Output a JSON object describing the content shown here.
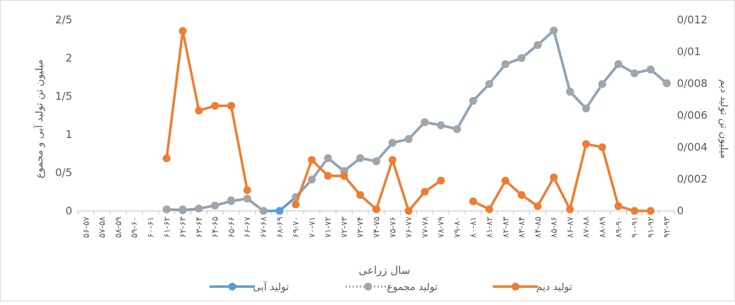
{
  "chart_data": {
    "type": "line",
    "title": "",
    "xlabel": "سال زراعی",
    "ylabel_left": "میلیون تن تولید آبی و مجموع",
    "ylabel_right": "میلیون تن تولید دیم",
    "ylim_left": [
      0,
      2.5
    ],
    "ylim_right": [
      0,
      0.012
    ],
    "yticks_left": [
      "0",
      "0/5",
      "1",
      "1/5",
      "2",
      "2/5"
    ],
    "yticks_right": [
      "0",
      "0/002",
      "0/004",
      "0/006",
      "0/008",
      "0/01",
      "0/012"
    ],
    "grid": false,
    "legend_position": "bottom",
    "categories": [
      "۵۶-۵۷",
      "۵۷-۵۸",
      "۵۸-۵۹",
      "۵۹-۶۰",
      "۶۰-۶۱",
      "۶۱-۶۲",
      "۶۲-۶۳",
      "۶۳-۶۴",
      "۶۴-۶۵",
      "۶۵-۶۶",
      "۶۶-۶۷",
      "۶۷-۶۸",
      "۶۸-۶۹",
      "۶۹-۷۰",
      "۷۰-۷۱",
      "۷۱-۷۲",
      "۷۲-۷۳",
      "۷۳-۷۴",
      "۷۴-۷۵",
      "۷۵-۷۶",
      "۷۶-۷۷",
      "۷۷-۷۸",
      "۷۸-۷۹",
      "۷۹-۸۰",
      "۸۰-۸۱",
      "۸۱-۸۲",
      "۸۲-۸۳",
      "۸۳-۸۴",
      "۸۴-۸۵",
      "۸۵-۸۶",
      "۸۶-۸۷",
      "۸۷-۸۸",
      "۸۸-۸۹",
      "۸۹-۹۰",
      "۹۰-۹۱",
      "۹۱-۹۲",
      "۹۲-۹۳"
    ],
    "series": [
      {
        "name": "تولید آبی",
        "axis": "left",
        "color": "#5B9BD5",
        "values": [
          null,
          null,
          null,
          null,
          null,
          0.02,
          0.01,
          0.03,
          0.07,
          0.13,
          0.16,
          0.0,
          0.0,
          0.18,
          0.41,
          0.69,
          0.52,
          0.69,
          0.65,
          0.89,
          0.94,
          1.16,
          1.12,
          1.07,
          1.44,
          1.66,
          1.92,
          2.0,
          2.17,
          2.36,
          1.56,
          1.34,
          1.66,
          1.92,
          1.8,
          1.85,
          1.67
        ]
      },
      {
        "name": "تولید مجموع",
        "axis": "left",
        "color": "#A5A5A5",
        "values": [
          null,
          null,
          null,
          null,
          null,
          0.02,
          0.02,
          0.03,
          0.07,
          0.14,
          0.16,
          0.0,
          null,
          0.18,
          0.41,
          0.69,
          0.52,
          0.69,
          0.65,
          0.89,
          0.94,
          1.16,
          1.12,
          1.07,
          1.44,
          1.66,
          1.92,
          2.0,
          2.17,
          2.36,
          1.56,
          1.34,
          1.66,
          1.92,
          1.8,
          1.85,
          1.67
        ]
      },
      {
        "name": "تولید دیم",
        "axis": "right",
        "color": "#ED7D31",
        "values": [
          null,
          null,
          null,
          null,
          null,
          0.0033,
          0.0113,
          0.0063,
          0.0066,
          0.0066,
          0.0013,
          null,
          null,
          0.0004,
          0.0032,
          0.0022,
          0.0022,
          0.001,
          0.0001,
          0.0032,
          0.0,
          0.0012,
          0.0019,
          null,
          0.0006,
          0.0001,
          0.0019,
          0.001,
          0.0003,
          0.0021,
          0.0001,
          0.0042,
          0.004,
          0.0003,
          0.0,
          0.0,
          null
        ]
      }
    ]
  }
}
